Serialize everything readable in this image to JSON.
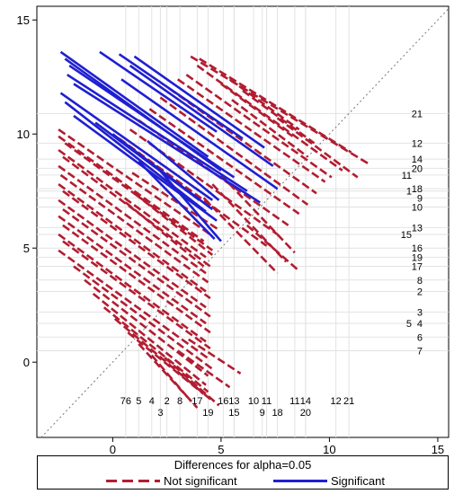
{
  "chart_data": {
    "type": "line",
    "title": "",
    "xlabel": "",
    "ylabel": "",
    "xlim": [
      -3.5,
      15.5
    ],
    "ylim": [
      -3.3,
      15.6
    ],
    "x_ticks": [
      0,
      5,
      10,
      15
    ],
    "y_ticks": [
      0,
      5,
      10,
      15
    ],
    "x_tick_labels": [
      "0",
      "5",
      "10",
      "15"
    ],
    "y_tick_labels": [
      "0",
      "5",
      "10",
      "15"
    ],
    "grid": false,
    "reference_line": "y = x (dotted diagonal)",
    "legend": {
      "title": "Differences for alpha=0.05",
      "placement": "bottom",
      "entries": [
        {
          "name": "Not significant",
          "color": "#b21d31",
          "style": "dashed"
        },
        {
          "name": "Significant",
          "color": "#1f1fd1",
          "style": "solid"
        }
      ]
    },
    "x_marker_labels": [
      {
        "x": 0.6,
        "text": "76"
      },
      {
        "x": 1.2,
        "text": "5"
      },
      {
        "x": 1.8,
        "text": "4"
      },
      {
        "x": 2.2,
        "text": "3"
      },
      {
        "x": 2.5,
        "text": "2"
      },
      {
        "x": 3.1,
        "text": "8"
      },
      {
        "x": 3.9,
        "text": "17"
      },
      {
        "x": 4.4,
        "text": "19"
      },
      {
        "x": 5.1,
        "text": "16"
      },
      {
        "x": 5.6,
        "text": "15"
      },
      {
        "x": 5.6,
        "text": "13"
      },
      {
        "x": 6.5,
        "text": "10"
      },
      {
        "x": 6.9,
        "text": "9"
      },
      {
        "x": 7.1,
        "text": "11"
      },
      {
        "x": 7.6,
        "text": "18"
      },
      {
        "x": 8.4,
        "text": "11"
      },
      {
        "x": 8.9,
        "text": "20"
      },
      {
        "x": 8.9,
        "text": "14"
      },
      {
        "x": 10.3,
        "text": "12"
      },
      {
        "x": 10.9,
        "text": "21"
      }
    ],
    "y_marker_labels": [
      {
        "y": 10.9,
        "text": "21"
      },
      {
        "y": 9.6,
        "text": "12"
      },
      {
        "y": 8.9,
        "text": "14"
      },
      {
        "y": 8.5,
        "text": "20"
      },
      {
        "y": 8.2,
        "text": "11"
      },
      {
        "y": 7.6,
        "text": "18"
      },
      {
        "y": 7.5,
        "text": "1"
      },
      {
        "y": 7.2,
        "text": "9"
      },
      {
        "y": 6.8,
        "text": "10"
      },
      {
        "y": 5.9,
        "text": "13"
      },
      {
        "y": 5.6,
        "text": "15"
      },
      {
        "y": 5.0,
        "text": "16"
      },
      {
        "y": 4.6,
        "text": "19"
      },
      {
        "y": 4.2,
        "text": "17"
      },
      {
        "y": 3.6,
        "text": "8"
      },
      {
        "y": 3.1,
        "text": "2"
      },
      {
        "y": 2.2,
        "text": "3"
      },
      {
        "y": 1.7,
        "text": "4"
      },
      {
        "y": 1.7,
        "text": "5"
      },
      {
        "y": 1.1,
        "text": "6"
      },
      {
        "y": 0.5,
        "text": "7"
      }
    ],
    "series": [
      {
        "name": "Not significant",
        "color": "#b21d31",
        "style": "dashed",
        "segments": [
          {
            "x1": 3.6,
            "y1": 13.4,
            "x2": 11.8,
            "y2": 8.7
          },
          {
            "x1": 4.0,
            "y1": 13.3,
            "x2": 11.0,
            "y2": 9.2
          },
          {
            "x1": 3.9,
            "y1": 13.0,
            "x2": 10.6,
            "y2": 8.4
          },
          {
            "x1": 3.4,
            "y1": 12.6,
            "x2": 10.1,
            "y2": 8.1
          },
          {
            "x1": 3.0,
            "y1": 12.4,
            "x2": 9.8,
            "y2": 7.9
          },
          {
            "x1": 2.6,
            "y1": 12.0,
            "x2": 9.4,
            "y2": 7.4
          },
          {
            "x1": 2.2,
            "y1": 11.6,
            "x2": 9.0,
            "y2": 6.9
          },
          {
            "x1": 1.7,
            "y1": 11.1,
            "x2": 8.6,
            "y2": 6.5
          },
          {
            "x1": 1.2,
            "y1": 10.6,
            "x2": 8.1,
            "y2": 6.0
          },
          {
            "x1": 0.8,
            "y1": 10.2,
            "x2": 7.6,
            "y2": 5.6
          },
          {
            "x1": 0.3,
            "y1": 9.8,
            "x2": 7.1,
            "y2": 5.1
          },
          {
            "x1": 6.0,
            "y1": 11.9,
            "x2": 9.3,
            "y2": 9.6
          },
          {
            "x1": 5.5,
            "y1": 11.5,
            "x2": 9.0,
            "y2": 9.0
          },
          {
            "x1": 5.4,
            "y1": 12.4,
            "x2": 8.6,
            "y2": 10.2
          },
          {
            "x1": 5.0,
            "y1": 12.2,
            "x2": 8.3,
            "y2": 9.9
          },
          {
            "x1": 7.6,
            "y1": 10.7,
            "x2": 11.3,
            "y2": 8.1
          },
          {
            "x1": 5.0,
            "y1": 8.2,
            "x2": 8.4,
            "y2": 4.8
          },
          {
            "x1": 4.6,
            "y1": 7.8,
            "x2": 8.0,
            "y2": 4.4
          },
          {
            "x1": 4.2,
            "y1": 7.2,
            "x2": 7.6,
            "y2": 3.9
          },
          {
            "x1": 6.2,
            "y1": 6.0,
            "x2": 8.6,
            "y2": 4.0
          },
          {
            "x1": -2.5,
            "y1": 10.2,
            "x2": 4.5,
            "y2": 5.6
          },
          {
            "x1": -2.5,
            "y1": 9.9,
            "x2": 4.2,
            "y2": 5.3
          },
          {
            "x1": -2.2,
            "y1": 9.6,
            "x2": 4.6,
            "y2": 4.9
          },
          {
            "x1": -2.5,
            "y1": 9.3,
            "x2": 4.3,
            "y2": 4.6
          },
          {
            "x1": -2.3,
            "y1": 9.0,
            "x2": 4.5,
            "y2": 4.2
          },
          {
            "x1": -2.5,
            "y1": 8.6,
            "x2": 4.3,
            "y2": 3.9
          },
          {
            "x1": -2.4,
            "y1": 8.2,
            "x2": 4.4,
            "y2": 3.5
          },
          {
            "x1": -2.5,
            "y1": 7.8,
            "x2": 4.3,
            "y2": 3.1
          },
          {
            "x1": -2.3,
            "y1": 7.5,
            "x2": 4.5,
            "y2": 2.8
          },
          {
            "x1": -2.5,
            "y1": 7.1,
            "x2": 4.3,
            "y2": 2.4
          },
          {
            "x1": -2.3,
            "y1": 6.7,
            "x2": 4.5,
            "y2": 2.0
          },
          {
            "x1": -2.5,
            "y1": 6.4,
            "x2": 4.3,
            "y2": 1.7
          },
          {
            "x1": -2.3,
            "y1": 6.0,
            "x2": 4.5,
            "y2": 1.3
          },
          {
            "x1": -2.5,
            "y1": 5.6,
            "x2": 4.3,
            "y2": 0.9
          },
          {
            "x1": -2.3,
            "y1": 5.3,
            "x2": 4.5,
            "y2": 0.6
          },
          {
            "x1": -2.5,
            "y1": 4.9,
            "x2": 4.5,
            "y2": 0.1
          },
          {
            "x1": -1.8,
            "y1": 4.2,
            "x2": 4.6,
            "y2": -0.3
          },
          {
            "x1": -1.3,
            "y1": 3.6,
            "x2": 4.4,
            "y2": -0.6
          },
          {
            "x1": -0.9,
            "y1": 3.0,
            "x2": 4.3,
            "y2": -1.0
          },
          {
            "x1": -0.4,
            "y1": 2.4,
            "x2": 4.4,
            "y2": -1.3
          },
          {
            "x1": 0.1,
            "y1": 1.9,
            "x2": 4.6,
            "y2": -1.7
          },
          {
            "x1": 0.7,
            "y1": 1.3,
            "x2": 4.2,
            "y2": -1.4
          },
          {
            "x1": 1.2,
            "y1": 0.8,
            "x2": 3.9,
            "y2": -2.0
          },
          {
            "x1": 1.8,
            "y1": 0.3,
            "x2": 3.6,
            "y2": -1.7
          },
          {
            "x1": 2.4,
            "y1": 0.2,
            "x2": 4.9,
            "y2": -1.9
          },
          {
            "x1": 3.0,
            "y1": 0.5,
            "x2": 5.4,
            "y2": -1.1
          },
          {
            "x1": 3.5,
            "y1": 1.0,
            "x2": 5.9,
            "y2": -0.5
          },
          {
            "x1": 0.6,
            "y1": 7.0,
            "x2": 4.2,
            "y2": 4.2
          },
          {
            "x1": 1.0,
            "y1": 7.4,
            "x2": 4.6,
            "y2": 4.7
          },
          {
            "x1": 0.9,
            "y1": 8.3,
            "x2": 4.9,
            "y2": 5.8
          }
        ]
      },
      {
        "name": "Significant",
        "color": "#1f1fd1",
        "style": "solid",
        "segments": [
          {
            "x1": -2.4,
            "y1": 13.6,
            "x2": 4.4,
            "y2": 9.0
          },
          {
            "x1": -2.2,
            "y1": 13.3,
            "x2": 5.0,
            "y2": 8.4
          },
          {
            "x1": -2.0,
            "y1": 13.0,
            "x2": 5.6,
            "y2": 8.1
          },
          {
            "x1": -2.1,
            "y1": 12.6,
            "x2": 6.2,
            "y2": 7.5
          },
          {
            "x1": -1.8,
            "y1": 12.2,
            "x2": 6.8,
            "y2": 7.0
          },
          {
            "x1": -0.6,
            "y1": 13.6,
            "x2": 4.8,
            "y2": 10.1
          },
          {
            "x1": 0.3,
            "y1": 13.5,
            "x2": 6.0,
            "y2": 9.8
          },
          {
            "x1": 1.0,
            "y1": 13.4,
            "x2": 7.0,
            "y2": 9.4
          },
          {
            "x1": 0.8,
            "y1": 13.0,
            "x2": 7.4,
            "y2": 8.6
          },
          {
            "x1": 0.4,
            "y1": 12.4,
            "x2": 7.6,
            "y2": 7.6
          },
          {
            "x1": -2.4,
            "y1": 11.8,
            "x2": 4.6,
            "y2": 7.1
          },
          {
            "x1": -2.2,
            "y1": 11.4,
            "x2": 4.3,
            "y2": 6.6
          },
          {
            "x1": -1.8,
            "y1": 10.8,
            "x2": 4.8,
            "y2": 6.2
          },
          {
            "x1": -0.8,
            "y1": 10.5,
            "x2": 4.0,
            "y2": 7.1
          },
          {
            "x1": 0.0,
            "y1": 10.0,
            "x2": 4.6,
            "y2": 6.7
          },
          {
            "x1": 1.6,
            "y1": 9.7,
            "x2": 4.9,
            "y2": 7.1
          },
          {
            "x1": 1.2,
            "y1": 8.8,
            "x2": 4.7,
            "y2": 5.4
          },
          {
            "x1": 2.0,
            "y1": 8.6,
            "x2": 5.0,
            "y2": 5.3
          }
        ]
      }
    ]
  }
}
